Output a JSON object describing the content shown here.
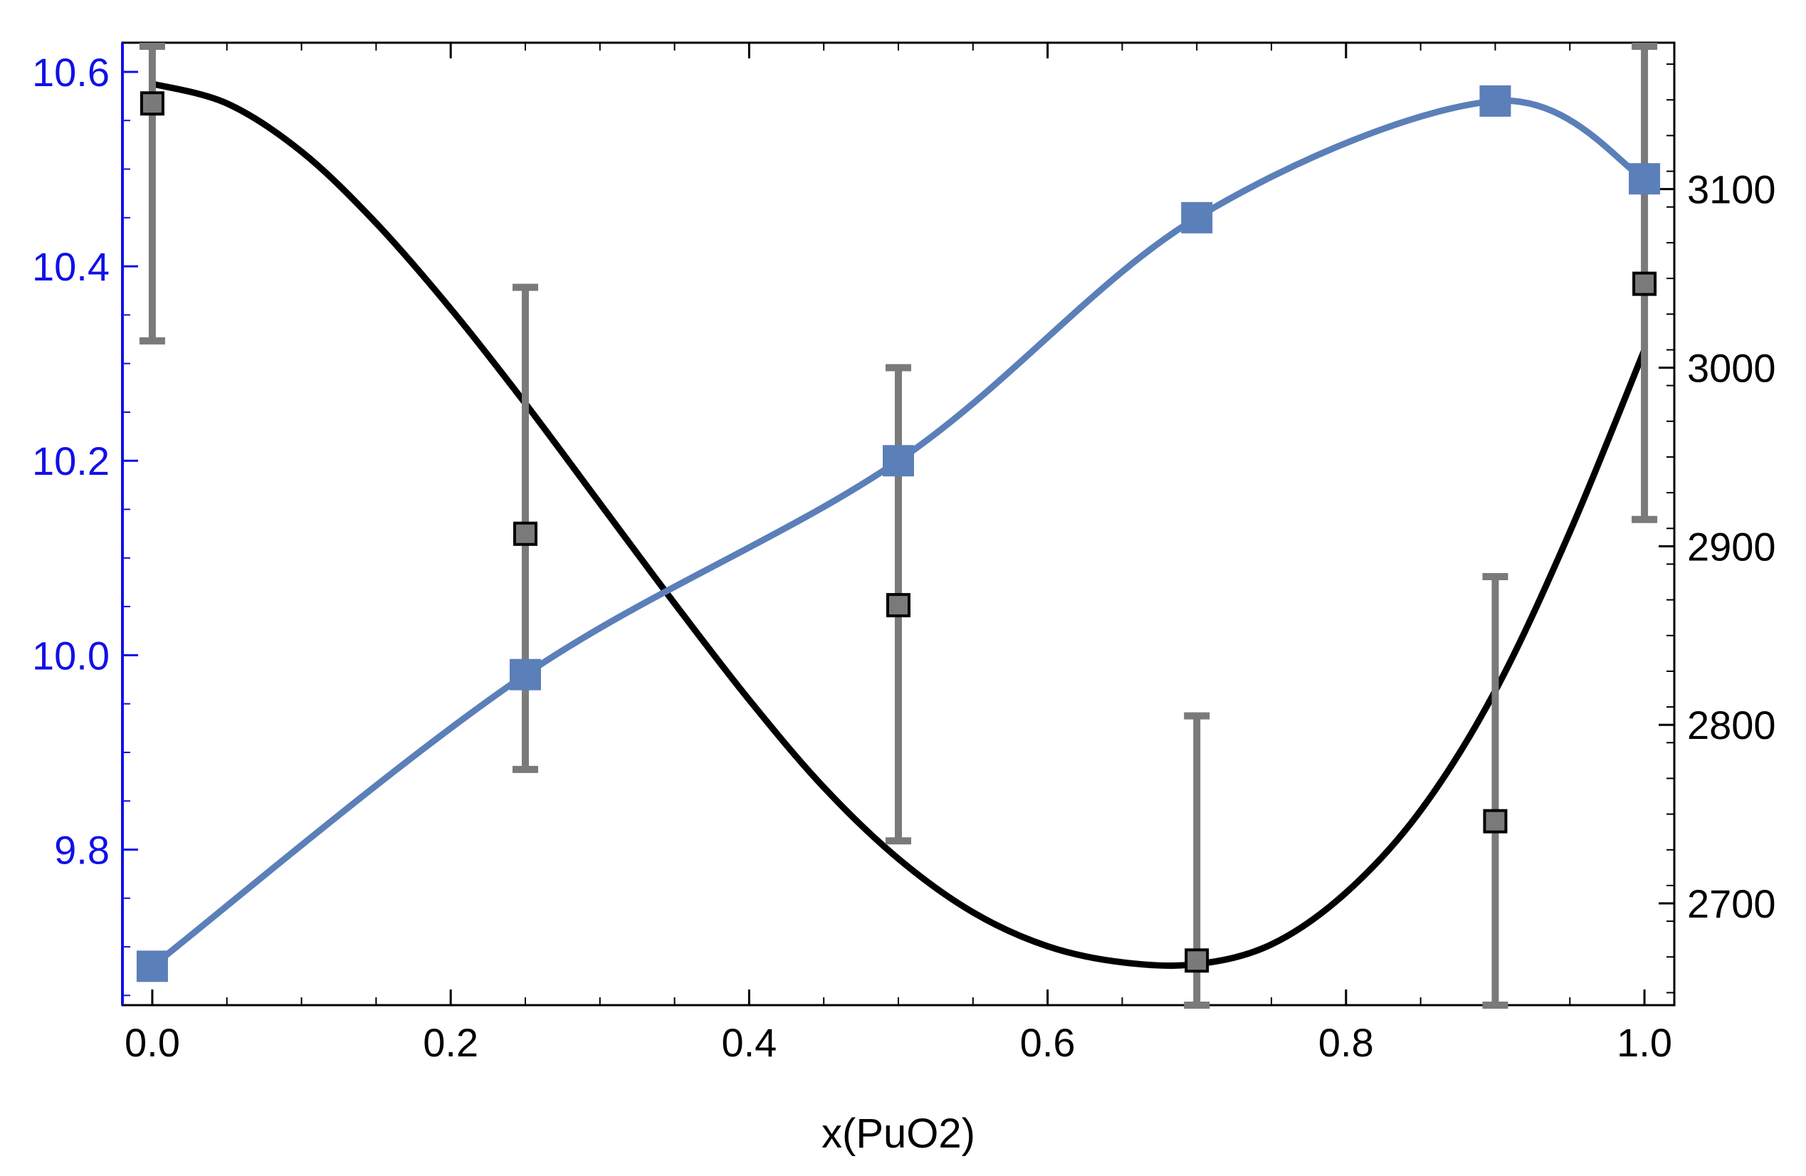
{
  "chart_data": {
    "type": "line",
    "xlabel": "x(PuO2)",
    "xlim": [
      -0.02,
      1.02
    ],
    "x_ticks": [
      0.0,
      0.2,
      0.4,
      0.6,
      0.8,
      1.0
    ],
    "x_tick_labels": [
      "0.0",
      "0.2",
      "0.4",
      "0.6",
      "0.8",
      "1.0"
    ],
    "y_left": {
      "ylim": [
        9.64,
        10.63
      ],
      "ticks": [
        9.8,
        10.0,
        10.2,
        10.4,
        10.6
      ],
      "tick_labels": [
        "9.8",
        "10.0",
        "10.2",
        "10.4",
        "10.6"
      ],
      "color": "#1010e8"
    },
    "y_right": {
      "ylim": [
        2643,
        3182
      ],
      "ticks": [
        2700,
        2800,
        2900,
        3000,
        3100
      ],
      "tick_labels": [
        "2700",
        "2800",
        "2900",
        "3000",
        "3100"
      ],
      "color": "#000000"
    },
    "series": [
      {
        "axis": "left",
        "color": "#5b7fb8",
        "marker": "filled-square",
        "points": [
          {
            "x": 0.0,
            "y": 9.68
          },
          {
            "x": 0.25,
            "y": 9.98
          },
          {
            "x": 0.5,
            "y": 10.2
          },
          {
            "x": 0.7,
            "y": 10.45
          },
          {
            "x": 0.9,
            "y": 10.57
          },
          {
            "x": 1.0,
            "y": 10.49
          }
        ]
      },
      {
        "axis": "right",
        "color": "#000000",
        "marker": "none",
        "curve": [
          {
            "x": 0.0,
            "y": 3159
          },
          {
            "x": 0.05,
            "y": 3148
          },
          {
            "x": 0.1,
            "y": 3121
          },
          {
            "x": 0.15,
            "y": 3081
          },
          {
            "x": 0.2,
            "y": 3033
          },
          {
            "x": 0.25,
            "y": 2980
          },
          {
            "x": 0.3,
            "y": 2924
          },
          {
            "x": 0.35,
            "y": 2868
          },
          {
            "x": 0.4,
            "y": 2814
          },
          {
            "x": 0.45,
            "y": 2765
          },
          {
            "x": 0.5,
            "y": 2725
          },
          {
            "x": 0.55,
            "y": 2695
          },
          {
            "x": 0.6,
            "y": 2676
          },
          {
            "x": 0.65,
            "y": 2667
          },
          {
            "x": 0.7,
            "y": 2666
          },
          {
            "x": 0.75,
            "y": 2677
          },
          {
            "x": 0.8,
            "y": 2706
          },
          {
            "x": 0.85,
            "y": 2752
          },
          {
            "x": 0.9,
            "y": 2819
          },
          {
            "x": 0.95,
            "y": 2908
          },
          {
            "x": 1.0,
            "y": 3010
          }
        ]
      },
      {
        "axis": "right",
        "color": "#7a7a7a",
        "marker": "open-square",
        "points": [
          {
            "x": 0.0,
            "y": 3148,
            "lower": 3015,
            "upper": 3180
          },
          {
            "x": 0.25,
            "y": 2907,
            "lower": 2775,
            "upper": 3045
          },
          {
            "x": 0.5,
            "y": 2867,
            "lower": 2735,
            "upper": 3000
          },
          {
            "x": 0.7,
            "y": 2668,
            "lower": 2643,
            "upper": 2805
          },
          {
            "x": 0.9,
            "y": 2746,
            "lower": 2643,
            "upper": 2883
          },
          {
            "x": 1.0,
            "y": 3047,
            "lower": 2915,
            "upper": 3180
          }
        ]
      }
    ]
  }
}
